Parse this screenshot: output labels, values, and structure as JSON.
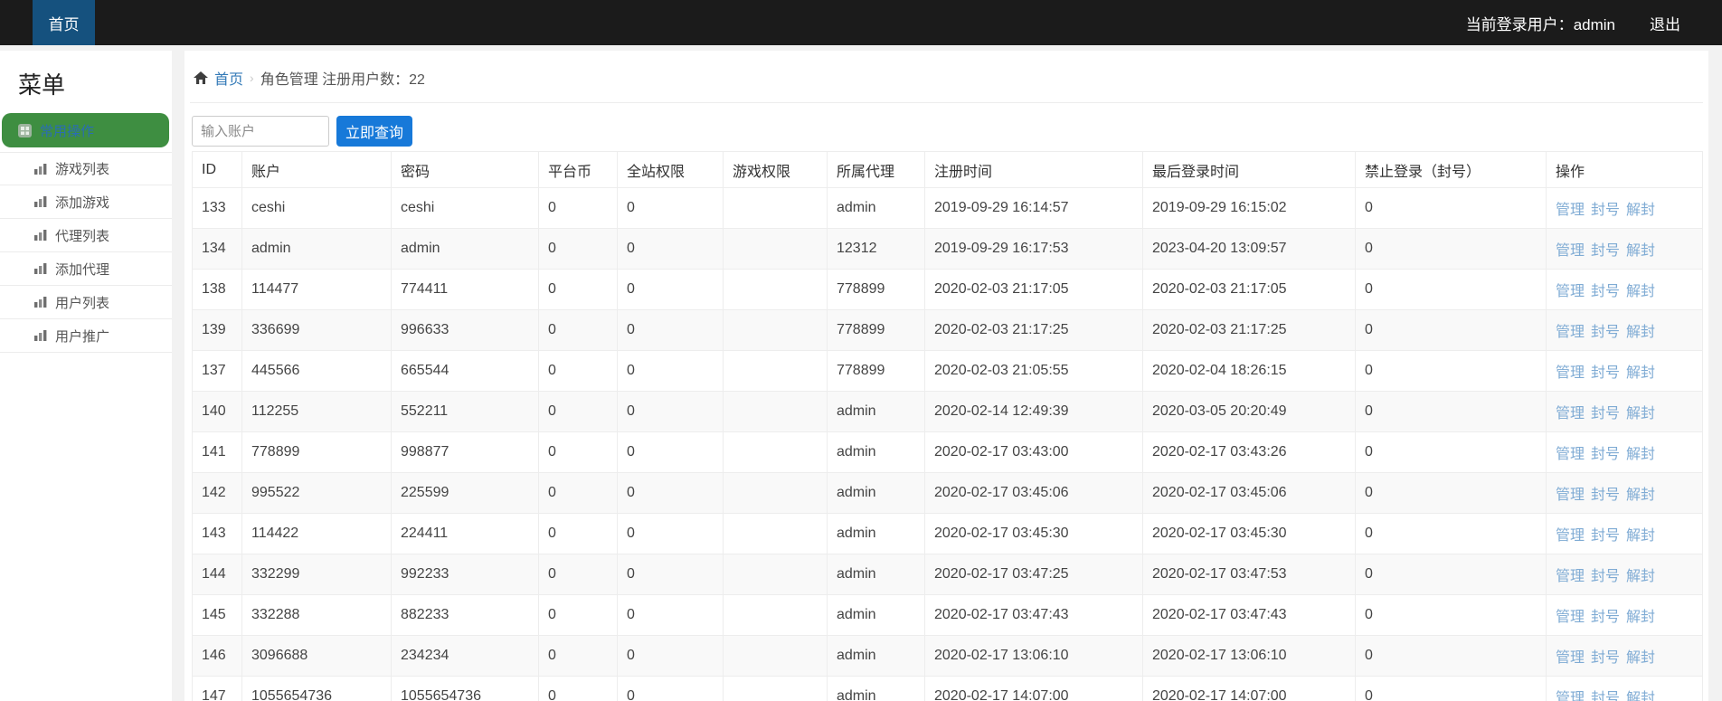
{
  "colors": {
    "navbar_bg": "#1b1b1b",
    "nav_tab_blue": "#15517e",
    "sidebar_active_green": "#3e8e41",
    "sidebar_active_text": "#2a6db4",
    "breadcrumb_link_blue": "#337ab7",
    "query_button_blue": "#1779d9",
    "action_link_blue": "#7fabd4",
    "row_stripe": "#f9f9f9"
  },
  "navbar": {
    "home_tab": "首页",
    "user_label": "当前登录用户：",
    "username": "admin",
    "logout": "退出"
  },
  "sidebar": {
    "title": "菜单",
    "active_item": {
      "label": "常用操作",
      "icon": "grid-icon"
    },
    "items": [
      {
        "label": "游戏列表",
        "icon": "bar-chart-icon"
      },
      {
        "label": "添加游戏",
        "icon": "bar-chart-icon"
      },
      {
        "label": "代理列表",
        "icon": "bar-chart-icon"
      },
      {
        "label": "添加代理",
        "icon": "bar-chart-icon"
      },
      {
        "label": "用户列表",
        "icon": "bar-chart-icon"
      },
      {
        "label": "用户推广",
        "icon": "bar-chart-icon"
      }
    ]
  },
  "breadcrumb": {
    "home_icon": "home-icon",
    "home": "首页",
    "separator": "›",
    "current": "角色管理 注册用户数：22"
  },
  "search": {
    "placeholder": "输入账户",
    "button": "立即查询"
  },
  "table": {
    "columns": [
      "ID",
      "账户",
      "密码",
      "平台币",
      "全站权限",
      "游戏权限",
      "所属代理",
      "注册时间",
      "最后登录时间",
      "禁止登录（封号）",
      "操作"
    ],
    "action_labels": [
      "管理",
      "封号",
      "解封"
    ],
    "rows": [
      {
        "id": "133",
        "account": "ceshi",
        "password": "ceshi",
        "coin": "0",
        "site_perm": "0",
        "game_perm": "",
        "agent": "admin",
        "reg_time": "2019-09-29 16:14:57",
        "last_login": "2019-09-29 16:15:02",
        "banned": "0"
      },
      {
        "id": "134",
        "account": "admin",
        "password": "admin",
        "coin": "0",
        "site_perm": "0",
        "game_perm": "",
        "agent": "12312",
        "reg_time": "2019-09-29 16:17:53",
        "last_login": "2023-04-20 13:09:57",
        "banned": "0"
      },
      {
        "id": "138",
        "account": "114477",
        "password": "774411",
        "coin": "0",
        "site_perm": "0",
        "game_perm": "",
        "agent": "778899",
        "reg_time": "2020-02-03 21:17:05",
        "last_login": "2020-02-03 21:17:05",
        "banned": "0"
      },
      {
        "id": "139",
        "account": "336699",
        "password": "996633",
        "coin": "0",
        "site_perm": "0",
        "game_perm": "",
        "agent": "778899",
        "reg_time": "2020-02-03 21:17:25",
        "last_login": "2020-02-03 21:17:25",
        "banned": "0"
      },
      {
        "id": "137",
        "account": "445566",
        "password": "665544",
        "coin": "0",
        "site_perm": "0",
        "game_perm": "",
        "agent": "778899",
        "reg_time": "2020-02-03 21:05:55",
        "last_login": "2020-02-04 18:26:15",
        "banned": "0"
      },
      {
        "id": "140",
        "account": "112255",
        "password": "552211",
        "coin": "0",
        "site_perm": "0",
        "game_perm": "",
        "agent": "admin",
        "reg_time": "2020-02-14 12:49:39",
        "last_login": "2020-03-05 20:20:49",
        "banned": "0"
      },
      {
        "id": "141",
        "account": "778899",
        "password": "998877",
        "coin": "0",
        "site_perm": "0",
        "game_perm": "",
        "agent": "admin",
        "reg_time": "2020-02-17 03:43:00",
        "last_login": "2020-02-17 03:43:26",
        "banned": "0"
      },
      {
        "id": "142",
        "account": "995522",
        "password": "225599",
        "coin": "0",
        "site_perm": "0",
        "game_perm": "",
        "agent": "admin",
        "reg_time": "2020-02-17 03:45:06",
        "last_login": "2020-02-17 03:45:06",
        "banned": "0"
      },
      {
        "id": "143",
        "account": "114422",
        "password": "224411",
        "coin": "0",
        "site_perm": "0",
        "game_perm": "",
        "agent": "admin",
        "reg_time": "2020-02-17 03:45:30",
        "last_login": "2020-02-17 03:45:30",
        "banned": "0"
      },
      {
        "id": "144",
        "account": "332299",
        "password": "992233",
        "coin": "0",
        "site_perm": "0",
        "game_perm": "",
        "agent": "admin",
        "reg_time": "2020-02-17 03:47:25",
        "last_login": "2020-02-17 03:47:53",
        "banned": "0"
      },
      {
        "id": "145",
        "account": "332288",
        "password": "882233",
        "coin": "0",
        "site_perm": "0",
        "game_perm": "",
        "agent": "admin",
        "reg_time": "2020-02-17 03:47:43",
        "last_login": "2020-02-17 03:47:43",
        "banned": "0"
      },
      {
        "id": "146",
        "account": "3096688",
        "password": "234234",
        "coin": "0",
        "site_perm": "0",
        "game_perm": "",
        "agent": "admin",
        "reg_time": "2020-02-17 13:06:10",
        "last_login": "2020-02-17 13:06:10",
        "banned": "0"
      },
      {
        "id": "147",
        "account": "1055654736",
        "password": "1055654736",
        "coin": "0",
        "site_perm": "0",
        "game_perm": "",
        "agent": "admin",
        "reg_time": "2020-02-17 14:07:00",
        "last_login": "2020-02-17 14:07:00",
        "banned": "0"
      }
    ]
  }
}
